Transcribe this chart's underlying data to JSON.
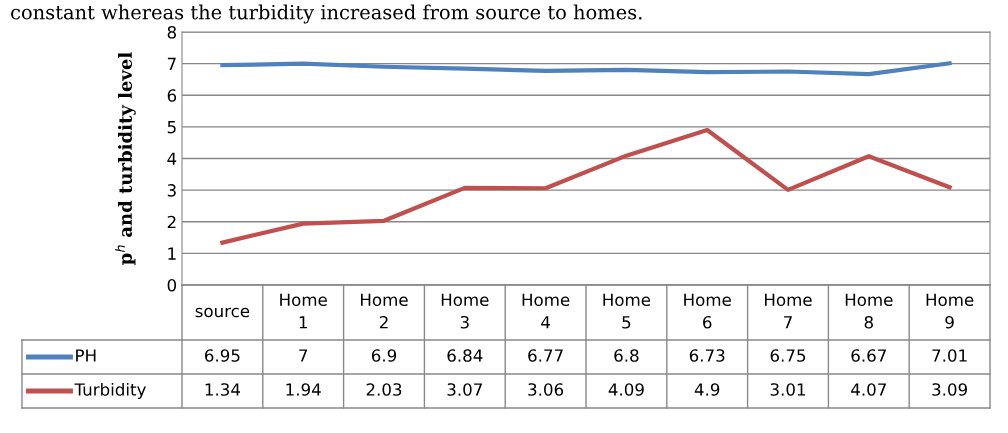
{
  "chart_data": {
    "type": "line",
    "ylabel": "p$^{h}$ and turbidity level",
    "annotations": [
      "constant whereas the turbidity increased from source to homes."
    ],
    "categories": [
      "source",
      "Home 1",
      "Home 2",
      "Home 3",
      "Home 4",
      "Home 5",
      "Home 6",
      "Home 7",
      "Home 8",
      "Home 9"
    ],
    "series": [
      {
        "name": "PH",
        "color": "#4f81bd",
        "values": [
          6.95,
          7,
          6.9,
          6.84,
          6.77,
          6.8,
          6.73,
          6.75,
          6.67,
          7.01
        ]
      },
      {
        "name": "Turbidity",
        "color": "#c0504d",
        "values": [
          1.34,
          1.94,
          2.03,
          3.07,
          3.06,
          4.09,
          4.9,
          3.01,
          4.07,
          3.09
        ]
      }
    ],
    "ylim": [
      0,
      8
    ],
    "yticks": [
      0,
      1,
      2,
      3,
      4,
      5,
      6,
      7,
      8
    ],
    "grid": "y",
    "legend": "bottom left",
    "data_labels": true,
    "marker": "none",
    "line_style": "solid"
  }
}
